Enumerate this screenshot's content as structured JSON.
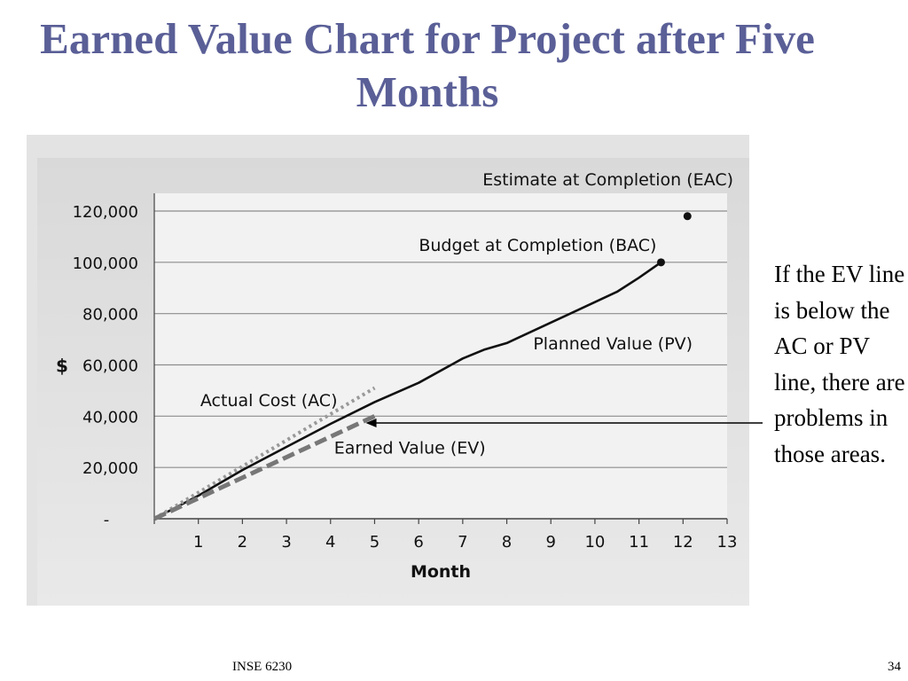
{
  "slide": {
    "title": "Earned Value Chart for Project after Five Months",
    "side_note": "If the EV line is below the AC or PV line, there are problems in those areas.",
    "footer_course": "INSE 6230",
    "page_number": "34"
  },
  "chart_data": {
    "type": "line",
    "title": "",
    "xlabel": "Month",
    "ylabel": "$",
    "xlim": [
      0,
      13
    ],
    "ylim": [
      0,
      120000
    ],
    "x_ticks": [
      "1",
      "2",
      "3",
      "4",
      "5",
      "6",
      "7",
      "8",
      "9",
      "10",
      "11",
      "12",
      "13"
    ],
    "y_ticks": [
      {
        "value": 0,
        "label": "-"
      },
      {
        "value": 20000,
        "label": "20,000"
      },
      {
        "value": 40000,
        "label": "40,000"
      },
      {
        "value": 60000,
        "label": "60,000"
      },
      {
        "value": 80000,
        "label": "80,000"
      },
      {
        "value": 100000,
        "label": "100,000"
      },
      {
        "value": 120000,
        "label": "120,000"
      }
    ],
    "grid": true,
    "series": [
      {
        "name": "Planned Value (PV)",
        "style": "solid",
        "color": "#111111",
        "x": [
          0,
          1,
          2,
          3,
          4,
          5,
          6,
          7,
          7.5,
          8,
          9,
          10,
          10.5,
          11,
          11.5
        ],
        "y": [
          0,
          9000,
          19000,
          28000,
          37000,
          45500,
          53000,
          62500,
          66000,
          68500,
          76500,
          84500,
          88500,
          94000,
          100000
        ]
      },
      {
        "name": "Actual Cost (AC)",
        "style": "dotted",
        "color": "#999999",
        "x": [
          0,
          5
        ],
        "y": [
          0,
          51000
        ]
      },
      {
        "name": "Earned Value (EV)",
        "style": "dashed",
        "color": "#777777",
        "x": [
          0,
          5
        ],
        "y": [
          0,
          40000
        ]
      }
    ],
    "points": [
      {
        "name": "Budget at Completion (BAC)",
        "x": 11.5,
        "y": 100000
      },
      {
        "name": "Estimate at Completion (EAC)",
        "x": 12.1,
        "y": 118000
      }
    ],
    "annotation_arrow": {
      "from": "side-note",
      "to_x": 4.8,
      "to_y": 38500
    }
  }
}
